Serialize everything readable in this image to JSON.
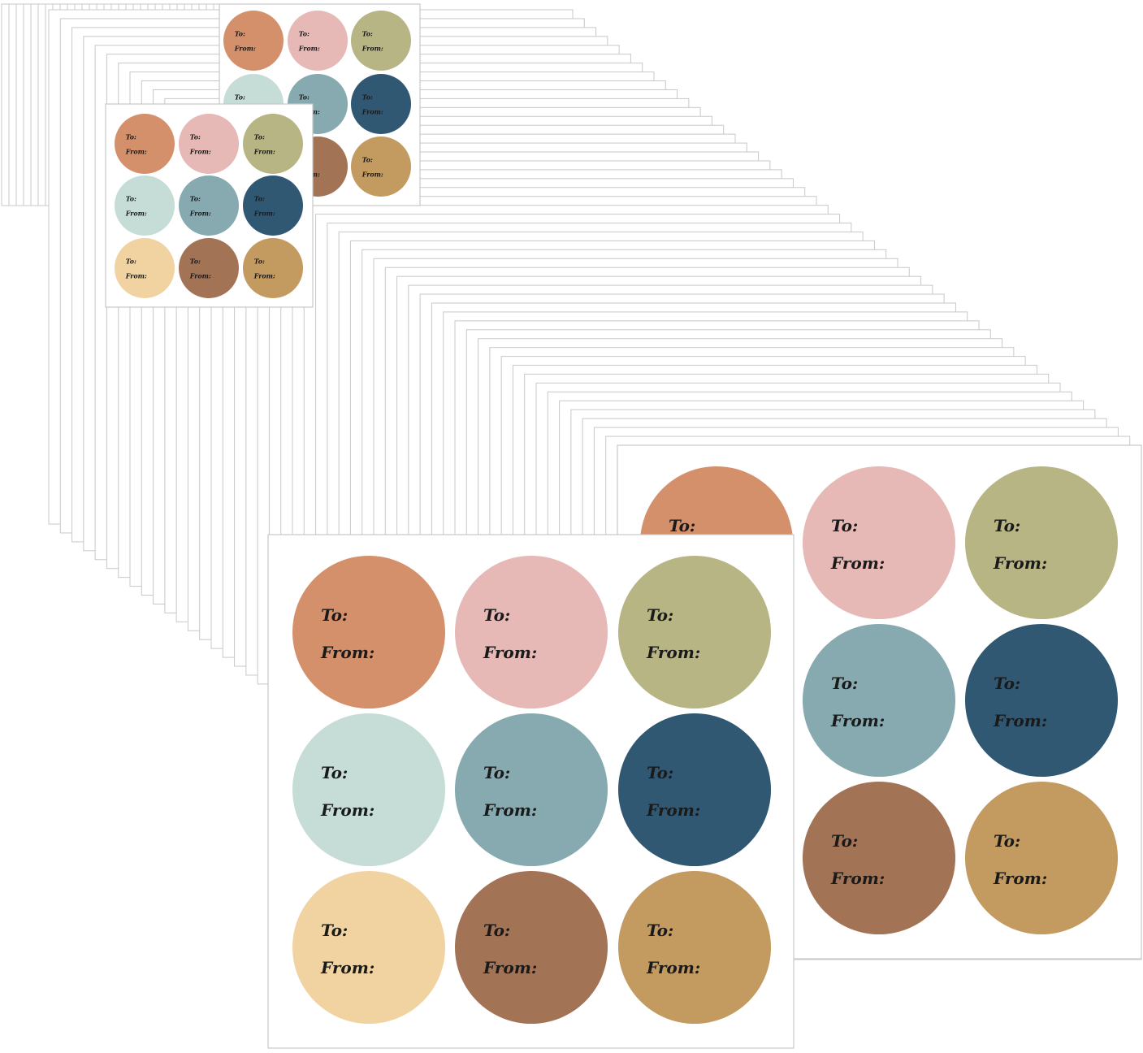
{
  "sticker": {
    "to_label": "To:",
    "from_label": "From:"
  },
  "colors": {
    "sheet": "#ffffff",
    "sheet_edge": "#c8c8c8",
    "stickers": [
      "#d4906a",
      "#e6b8b6",
      "#b8b585",
      "#c5ddd6",
      "#86aab0",
      "#315872",
      "#f1d3a2",
      "#a37356",
      "#c39a5f"
    ]
  },
  "sheets": [
    {
      "name": "small-back-sheet",
      "hidden": []
    },
    {
      "name": "small-front-sheet",
      "hidden": []
    },
    {
      "name": "large-back-sheet",
      "hidden": [
        0,
        6
      ]
    },
    {
      "name": "large-front-sheet",
      "hidden": []
    }
  ]
}
